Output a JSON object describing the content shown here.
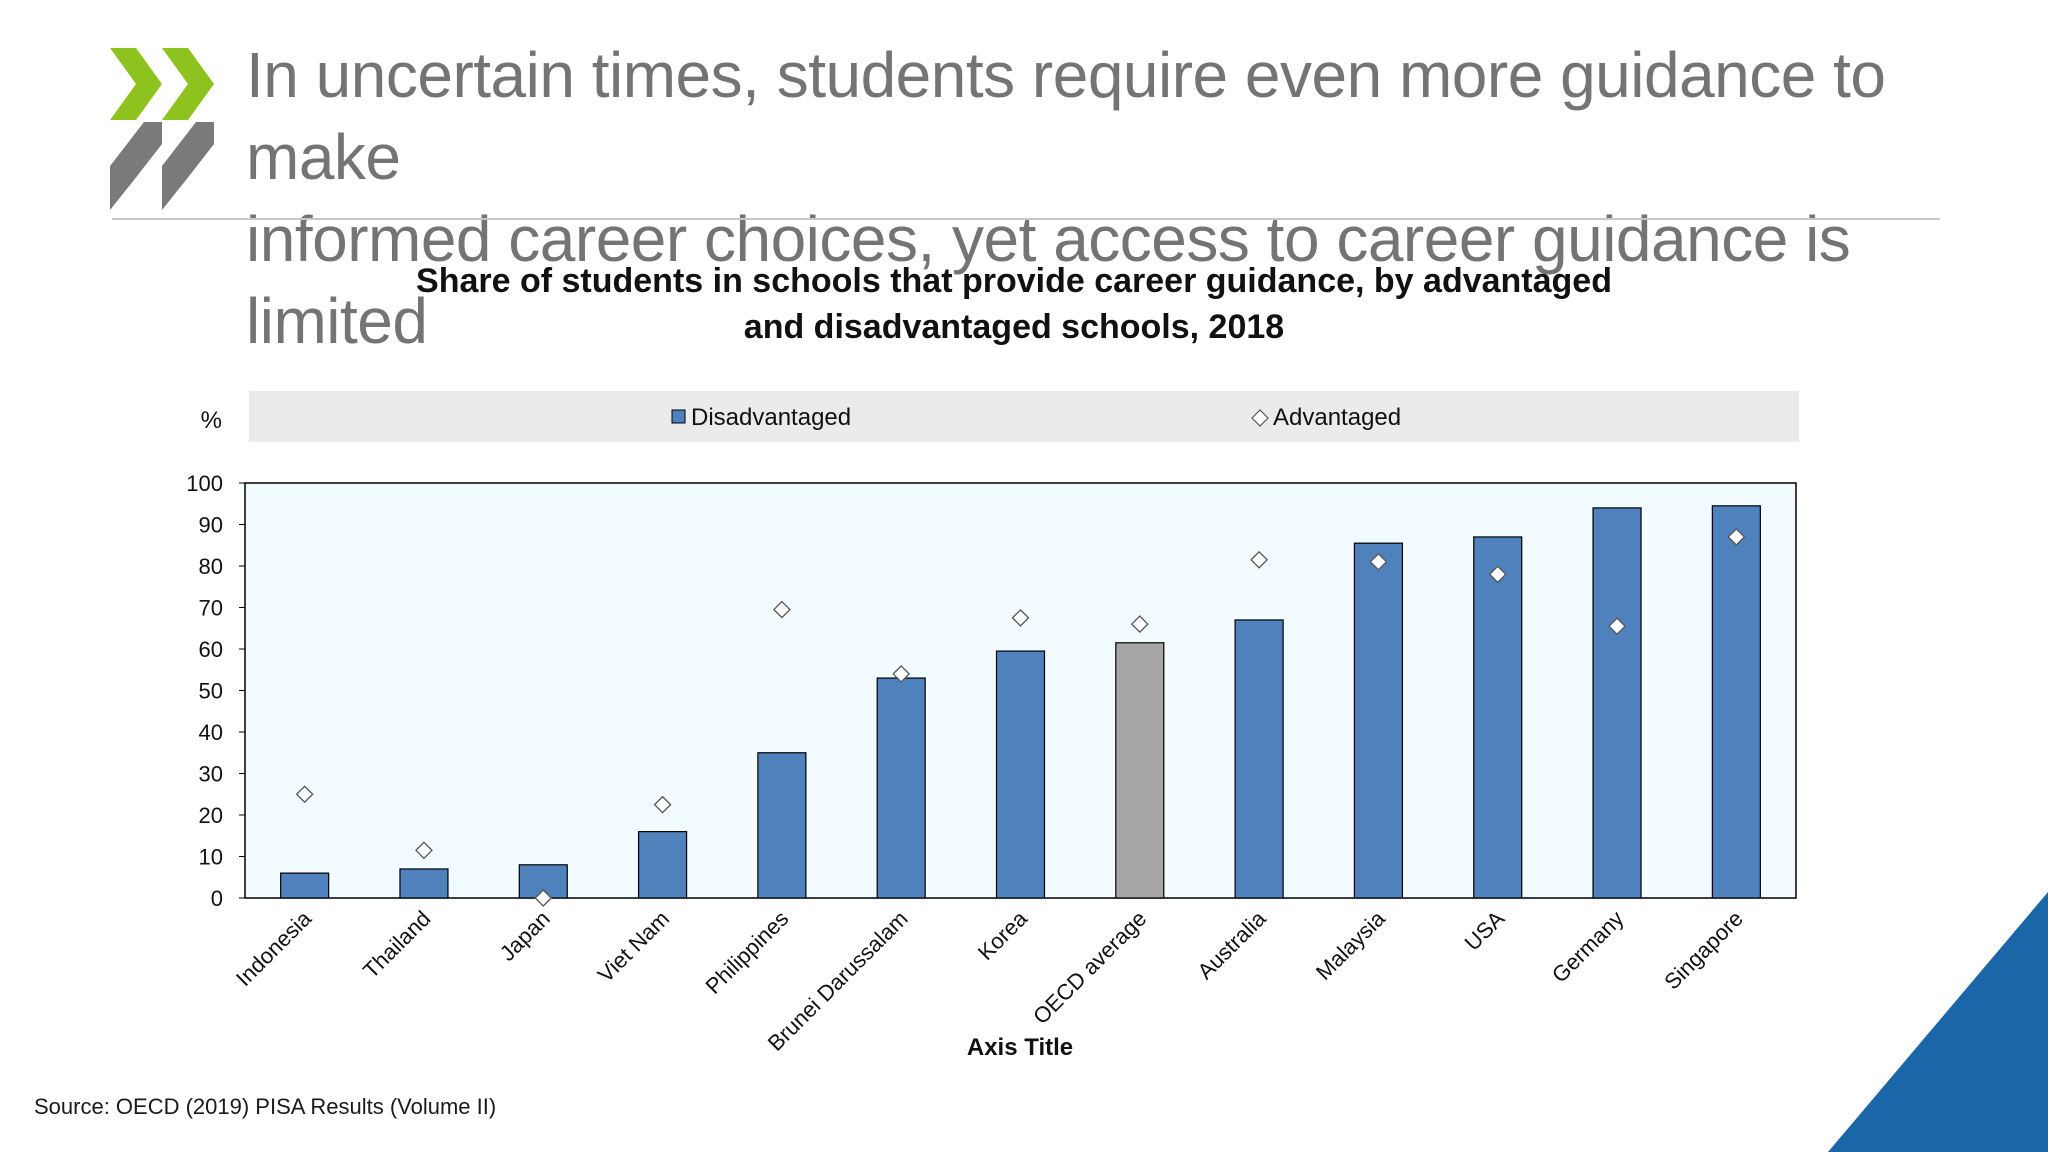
{
  "slide": {
    "headline_line1": "In uncertain times, students require even more guidance to make",
    "headline_line2": "informed career choices, yet access to career guidance is limited",
    "source": "Source: OECD (2019) PISA Results (Volume II)",
    "logo_icon": "double-chevron-logo-icon",
    "colors": {
      "logo_green": "#8dc21f",
      "logo_grey": "#7a7a7c",
      "corner_blue": "#1a66a8"
    }
  },
  "chart_data": {
    "type": "bar",
    "title_line1": "Share of students in schools that provide career guidance, by advantaged",
    "title_line2": "and disadvantaged schools, 2018",
    "y_unit": "%",
    "xlabel": "Axis Title",
    "ylim": [
      0,
      100
    ],
    "yticks": [
      0,
      10,
      20,
      30,
      40,
      50,
      60,
      70,
      80,
      90,
      100
    ],
    "legend_position": "top",
    "grid": false,
    "categories": [
      "Indonesia",
      "Thailand",
      "Japan",
      "Viet Nam",
      "Philippines",
      "Brunei Darussalam",
      "Korea",
      "OECD average",
      "Australia",
      "Malaysia",
      "USA",
      "Germany",
      "Singapore"
    ],
    "highlight_category": "OECD average",
    "series": [
      {
        "name": "Disadvantaged",
        "kind": "bar",
        "color": "#4f81bd",
        "highlight_color": "#a6a6a6",
        "values": [
          6,
          7,
          8,
          16,
          35,
          53,
          59.5,
          61.5,
          67,
          85.5,
          87,
          94,
          94.5
        ]
      },
      {
        "name": "Advantaged",
        "kind": "marker",
        "marker": "diamond",
        "values": [
          25,
          11.5,
          0,
          22.5,
          69.5,
          54,
          67.5,
          66,
          81.5,
          81,
          78,
          65.5,
          87
        ]
      }
    ]
  }
}
